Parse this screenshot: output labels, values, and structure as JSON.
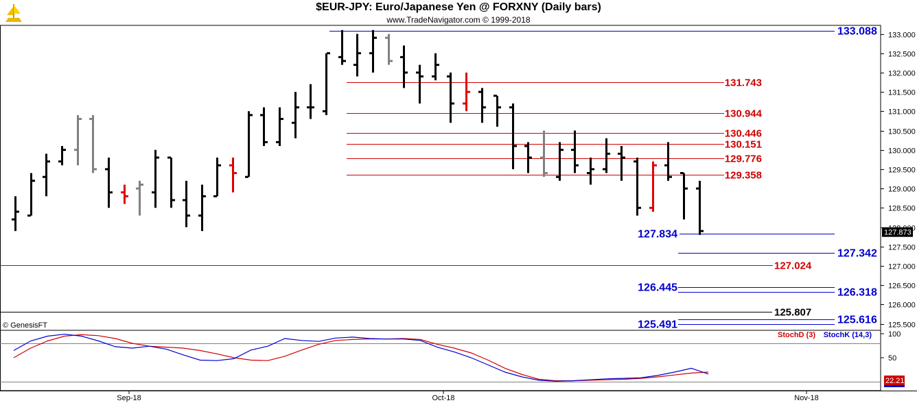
{
  "title": "$EUR-JPY:  Euro/Japanese Yen @ FORXNY  (Daily bars)",
  "copyright": "www.TradeNavigator.com © 1999-2018",
  "genesis": "© GenesisFT",
  "stoch_legend": {
    "d": "StochD (3)",
    "k": "StochK (14,3)"
  },
  "current_price": "127.873",
  "current_stoch": "22.21",
  "colors": {
    "up": "#000000",
    "down_red": "#e00000",
    "grey": "#808080",
    "red_level": "#d00000",
    "blue_level": "#0000cc"
  },
  "chart_data": {
    "type": "ohlc",
    "y_ticks": [
      "125.500",
      "126.000",
      "126.500",
      "127.000",
      "127.500",
      "128.000",
      "128.500",
      "129.000",
      "129.500",
      "130.000",
      "130.500",
      "131.000",
      "131.500",
      "132.000",
      "132.500",
      "133.000"
    ],
    "x_labels": [
      "Sep-18",
      "Oct-18",
      "Nov-18"
    ],
    "bars": [
      {
        "o": 128.2,
        "h": 128.8,
        "l": 127.9,
        "c": 128.4,
        "col": "k"
      },
      {
        "o": 128.3,
        "h": 129.4,
        "l": 128.3,
        "c": 129.2,
        "col": "k"
      },
      {
        "o": 129.3,
        "h": 129.9,
        "l": 128.8,
        "c": 129.7,
        "col": "k"
      },
      {
        "o": 129.7,
        "h": 130.1,
        "l": 129.6,
        "c": 130.0,
        "col": "k"
      },
      {
        "o": 130.0,
        "h": 130.9,
        "l": 129.6,
        "c": 130.8,
        "col": "g"
      },
      {
        "o": 130.8,
        "h": 130.9,
        "l": 129.4,
        "c": 129.5,
        "col": "g"
      },
      {
        "o": 129.5,
        "h": 129.8,
        "l": 128.5,
        "c": 128.9,
        "col": "k"
      },
      {
        "o": 128.9,
        "h": 129.1,
        "l": 128.6,
        "c": 128.8,
        "col": "r"
      },
      {
        "o": 129.0,
        "h": 129.2,
        "l": 128.3,
        "c": 129.1,
        "col": "g"
      },
      {
        "o": 128.9,
        "h": 130.0,
        "l": 128.5,
        "c": 129.8,
        "col": "k"
      },
      {
        "o": 129.8,
        "h": 129.8,
        "l": 128.5,
        "c": 128.7,
        "col": "k"
      },
      {
        "o": 128.7,
        "h": 129.2,
        "l": 128.0,
        "c": 128.3,
        "col": "k"
      },
      {
        "o": 128.3,
        "h": 129.1,
        "l": 127.9,
        "c": 128.8,
        "col": "k"
      },
      {
        "o": 128.8,
        "h": 129.8,
        "l": 128.8,
        "c": 129.6,
        "col": "k"
      },
      {
        "o": 129.6,
        "h": 129.8,
        "l": 128.9,
        "c": 129.4,
        "col": "r"
      },
      {
        "o": 129.3,
        "h": 131.0,
        "l": 129.3,
        "c": 130.9,
        "col": "k"
      },
      {
        "o": 130.9,
        "h": 131.1,
        "l": 130.1,
        "c": 130.2,
        "col": "k"
      },
      {
        "o": 130.2,
        "h": 131.1,
        "l": 130.1,
        "c": 130.8,
        "col": "k"
      },
      {
        "o": 130.7,
        "h": 131.5,
        "l": 130.3,
        "c": 131.1,
        "col": "k"
      },
      {
        "o": 131.1,
        "h": 131.7,
        "l": 130.8,
        "c": 131.1,
        "col": "k"
      },
      {
        "o": 131.0,
        "h": 132.5,
        "l": 130.9,
        "c": 132.5,
        "col": "k"
      },
      {
        "o": 132.4,
        "h": 133.1,
        "l": 132.2,
        "c": 132.3,
        "col": "k"
      },
      {
        "o": 132.2,
        "h": 133.0,
        "l": 131.9,
        "c": 132.5,
        "col": "k"
      },
      {
        "o": 132.5,
        "h": 133.1,
        "l": 132.0,
        "c": 132.9,
        "col": "k"
      },
      {
        "o": 132.9,
        "h": 133.0,
        "l": 132.2,
        "c": 132.3,
        "col": "g"
      },
      {
        "o": 132.4,
        "h": 132.7,
        "l": 131.6,
        "c": 132.0,
        "col": "k"
      },
      {
        "o": 132.0,
        "h": 132.2,
        "l": 131.2,
        "c": 131.9,
        "col": "k"
      },
      {
        "o": 131.9,
        "h": 132.5,
        "l": 131.8,
        "c": 132.2,
        "col": "k"
      },
      {
        "o": 131.9,
        "h": 132.0,
        "l": 130.7,
        "c": 131.2,
        "col": "k"
      },
      {
        "o": 131.2,
        "h": 132.0,
        "l": 131.0,
        "c": 131.5,
        "col": "r"
      },
      {
        "o": 131.5,
        "h": 131.6,
        "l": 130.7,
        "c": 131.1,
        "col": "k"
      },
      {
        "o": 131.4,
        "h": 131.4,
        "l": 130.6,
        "c": 131.1,
        "col": "k"
      },
      {
        "o": 131.1,
        "h": 131.2,
        "l": 129.5,
        "c": 130.1,
        "col": "k"
      },
      {
        "o": 130.1,
        "h": 130.2,
        "l": 129.4,
        "c": 129.8,
        "col": "k"
      },
      {
        "o": 129.8,
        "h": 130.5,
        "l": 129.3,
        "c": 129.4,
        "col": "g"
      },
      {
        "o": 129.3,
        "h": 130.2,
        "l": 129.2,
        "c": 130.0,
        "col": "k"
      },
      {
        "o": 130.0,
        "h": 130.5,
        "l": 129.4,
        "c": 129.6,
        "col": "k"
      },
      {
        "o": 129.4,
        "h": 129.8,
        "l": 129.1,
        "c": 129.5,
        "col": "k"
      },
      {
        "o": 129.5,
        "h": 130.3,
        "l": 129.4,
        "c": 129.9,
        "col": "k"
      },
      {
        "o": 129.9,
        "h": 130.1,
        "l": 129.2,
        "c": 129.8,
        "col": "k"
      },
      {
        "o": 129.7,
        "h": 129.8,
        "l": 128.3,
        "c": 128.5,
        "col": "k"
      },
      {
        "o": 128.5,
        "h": 129.7,
        "l": 128.4,
        "c": 129.6,
        "col": "r"
      },
      {
        "o": 129.6,
        "h": 130.2,
        "l": 129.2,
        "c": 129.3,
        "col": "k"
      },
      {
        "o": 129.4,
        "h": 129.4,
        "l": 128.2,
        "c": 129.0,
        "col": "k"
      },
      {
        "o": 129.0,
        "h": 129.2,
        "l": 127.8,
        "c": 127.9,
        "col": "k"
      }
    ],
    "levels": [
      {
        "value": "133.088",
        "v": 133.088,
        "color": "blue"
      },
      {
        "value": "131.743",
        "v": 131.743,
        "color": "red"
      },
      {
        "value": "130.944",
        "v": 130.944,
        "color": "red"
      },
      {
        "value": "130.446",
        "v": 130.446,
        "color": "red"
      },
      {
        "value": "130.151",
        "v": 130.151,
        "color": "red"
      },
      {
        "value": "129.776",
        "v": 129.776,
        "color": "red"
      },
      {
        "value": "129.358",
        "v": 129.358,
        "color": "red"
      },
      {
        "value": "127.834",
        "v": 127.834,
        "color": "blue"
      },
      {
        "value": "127.342",
        "v": 127.342,
        "color": "blue"
      },
      {
        "value": "127.024",
        "v": 127.024,
        "color": "red"
      },
      {
        "value": "126.445",
        "v": 126.445,
        "color": "blue"
      },
      {
        "value": "126.318",
        "v": 126.318,
        "color": "blue"
      },
      {
        "value": "125.807",
        "v": 125.807,
        "color": "black"
      },
      {
        "value": "125.616",
        "v": 125.616,
        "color": "blue"
      },
      {
        "value": "125.491",
        "v": 125.491,
        "color": "blue"
      }
    ],
    "stoch_ticks": [
      "100",
      "50"
    ],
    "stoch_d": [
      50,
      70,
      85,
      95,
      98,
      96,
      90,
      80,
      74,
      72,
      70,
      65,
      58,
      50,
      45,
      44,
      53,
      66,
      78,
      86,
      88,
      89,
      89,
      90,
      88,
      78,
      70,
      60,
      45,
      28,
      15,
      5,
      2,
      2,
      3,
      4,
      5,
      7,
      10,
      14,
      18,
      20
    ],
    "stoch_k": [
      65,
      85,
      95,
      99,
      95,
      85,
      73,
      70,
      74,
      68,
      56,
      45,
      44,
      48,
      66,
      74,
      90,
      86,
      84,
      91,
      93,
      90,
      89,
      89,
      86,
      72,
      62,
      50,
      35,
      20,
      10,
      3,
      1,
      2,
      4,
      6,
      7,
      8,
      13,
      20,
      28,
      16
    ]
  }
}
